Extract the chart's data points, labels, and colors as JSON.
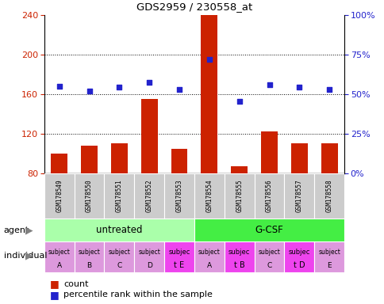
{
  "title": "GDS2959 / 230558_at",
  "samples": [
    "GSM178549",
    "GSM178550",
    "GSM178551",
    "GSM178552",
    "GSM178553",
    "GSM178554",
    "GSM178555",
    "GSM178556",
    "GSM178557",
    "GSM178558"
  ],
  "bar_values": [
    100,
    108,
    110,
    155,
    105,
    240,
    87,
    122,
    110,
    110
  ],
  "percentile_left_axis": [
    168,
    163,
    167,
    172,
    165,
    195,
    153,
    170,
    167,
    165
  ],
  "ylim_left": [
    80,
    240
  ],
  "ylim_right": [
    0,
    100
  ],
  "yticks_left": [
    80,
    120,
    160,
    200,
    240
  ],
  "bar_color": "#cc2200",
  "dot_color": "#2222cc",
  "agent_colors": {
    "untreated": "#aaffaa",
    "G-CSF": "#44ee44"
  },
  "individual_color_normal": "#dd99dd",
  "individual_color_highlight": "#ee44ee",
  "individual_highlighted": [
    4,
    6,
    8
  ],
  "tick_label_color_left": "#cc2200",
  "tick_label_color_right": "#2222cc",
  "bar_bottom": 80,
  "sample_bg_color": "#cccccc",
  "indiv_top": [
    "subject",
    "subject",
    "subject",
    "subject",
    "subjec",
    "subject",
    "subjec",
    "subject",
    "subjec",
    "subject"
  ],
  "indiv_bot": [
    "A",
    "B",
    "C",
    "D",
    "t E",
    "A",
    "t B",
    "C",
    "t D",
    "E"
  ]
}
